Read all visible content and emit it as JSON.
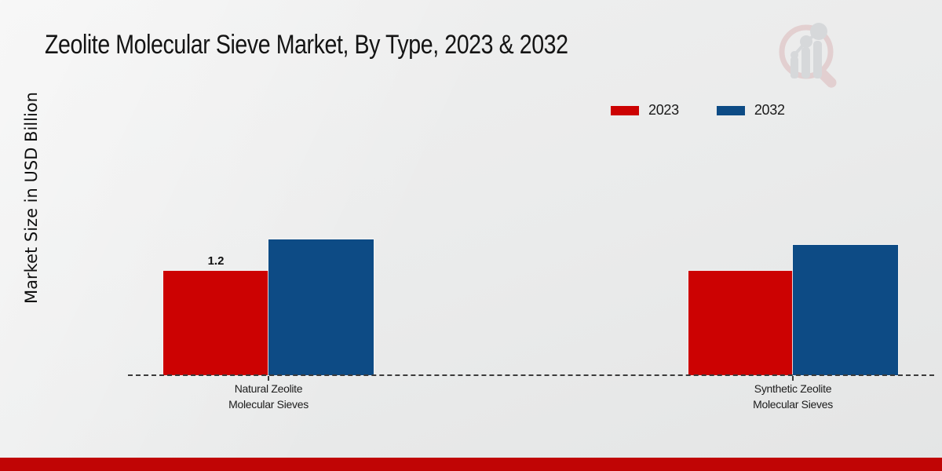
{
  "colors": {
    "series_2023": "#cc0202",
    "series_2032": "#0d4b85",
    "footer_band": "#c00505",
    "baseline": "#3b3b3b",
    "background": "#eaebeb"
  },
  "branding": {
    "logo_icon": "magnifier-bar-chart-watermark"
  },
  "chart_data": {
    "type": "bar",
    "title": "Zeolite Molecular Sieve Market, By Type, 2023 & 2032",
    "xlabel": "",
    "ylabel": "Market Size in USD Billion",
    "categories": [
      "Natural Zeolite Molecular Sieves",
      "Synthetic Zeolite Molecular Sieves"
    ],
    "series": [
      {
        "name": "2023",
        "color": "#cc0202",
        "values": [
          1.2,
          1.2
        ]
      },
      {
        "name": "2032",
        "color": "#0d4b85",
        "values": [
          1.56,
          1.5
        ]
      }
    ],
    "data_labels": [
      {
        "series": "2023",
        "category": "Natural Zeolite Molecular Sieves",
        "text": "1.2",
        "value": 1.2
      }
    ],
    "legend_position": "top-right",
    "grid": false,
    "baseline_style": "dashed",
    "ylim": [
      0,
      1.8
    ]
  }
}
